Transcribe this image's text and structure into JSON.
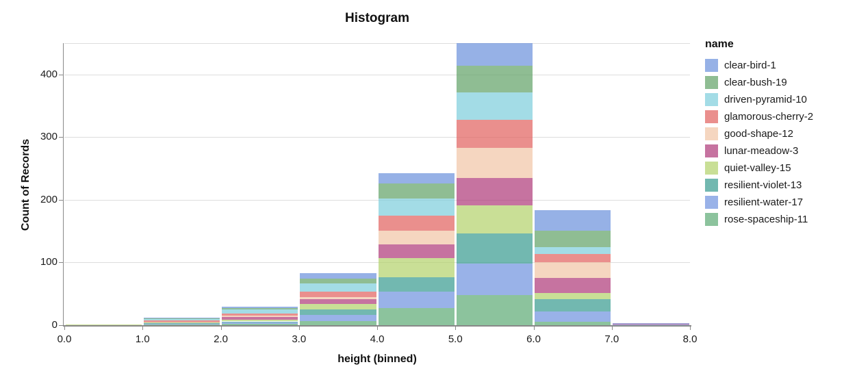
{
  "title": "Histogram",
  "axes": {
    "x": {
      "title": "height (binned)",
      "tick_labels": [
        "0.0",
        "1.0",
        "2.0",
        "3.0",
        "4.0",
        "5.0",
        "6.0",
        "7.0",
        "8.0"
      ]
    },
    "y": {
      "title": "Count of Records",
      "tick_labels": [
        "0",
        "100",
        "200",
        "300",
        "400"
      ],
      "tick_values": [
        0,
        100,
        200,
        300,
        400
      ]
    }
  },
  "legend": {
    "title": "name"
  },
  "chart_data": {
    "type": "bar",
    "subtype": "stacked-histogram",
    "title": "Histogram",
    "xlabel": "height (binned)",
    "ylabel": "Count of Records",
    "bin_edges": [
      0,
      1,
      2,
      3,
      4,
      5,
      6,
      7,
      8
    ],
    "ylim": [
      0,
      450
    ],
    "grid": true,
    "gridline_values": [
      100,
      200,
      300,
      400,
      450
    ],
    "legend_position": "right",
    "stack_order": "first-series-on-top",
    "series": [
      {
        "name": "clear-bird-1",
        "color": "#6a90db",
        "values": [
          0,
          1,
          2,
          9,
          16,
          38,
          33,
          1
        ]
      },
      {
        "name": "clear-bush-19",
        "color": "#5fa165",
        "values": [
          0,
          1,
          2,
          7,
          24,
          43,
          27,
          0
        ]
      },
      {
        "name": "driven-pyramid-10",
        "color": "#7ccddb",
        "values": [
          0,
          2,
          6,
          13,
          27,
          43,
          10,
          0
        ]
      },
      {
        "name": "glamorous-cherry-2",
        "color": "#e15f5c",
        "values": [
          0,
          2,
          4,
          9,
          24,
          45,
          13,
          0
        ]
      },
      {
        "name": "good-shape-12",
        "color": "#f1c4a5",
        "values": [
          0,
          1,
          2,
          4,
          22,
          48,
          26,
          0
        ]
      },
      {
        "name": "lunar-meadow-3",
        "color": "#ae3877",
        "values": [
          0,
          1,
          4,
          7,
          22,
          44,
          24,
          1
        ]
      },
      {
        "name": "quiet-valley-15",
        "color": "#b2d169",
        "values": [
          1,
          1,
          3,
          9,
          31,
          45,
          10,
          0
        ]
      },
      {
        "name": "resilient-violet-13",
        "color": "#369a8e",
        "values": [
          0,
          1,
          2,
          9,
          22,
          48,
          19,
          0
        ]
      },
      {
        "name": "resilient-water-17",
        "color": "#6d92de",
        "values": [
          0,
          1,
          2,
          9,
          27,
          50,
          17,
          1
        ]
      },
      {
        "name": "rose-spaceship-11",
        "color": "#5ba973",
        "values": [
          0,
          1,
          2,
          7,
          27,
          48,
          5,
          0
        ]
      }
    ],
    "bin_totals": [
      1,
      12,
      29,
      83,
      242,
      452,
      184,
      3
    ],
    "colors": {
      "gridline": "#dddddd",
      "axis": "#888888",
      "text": "#1a1a1a"
    }
  }
}
